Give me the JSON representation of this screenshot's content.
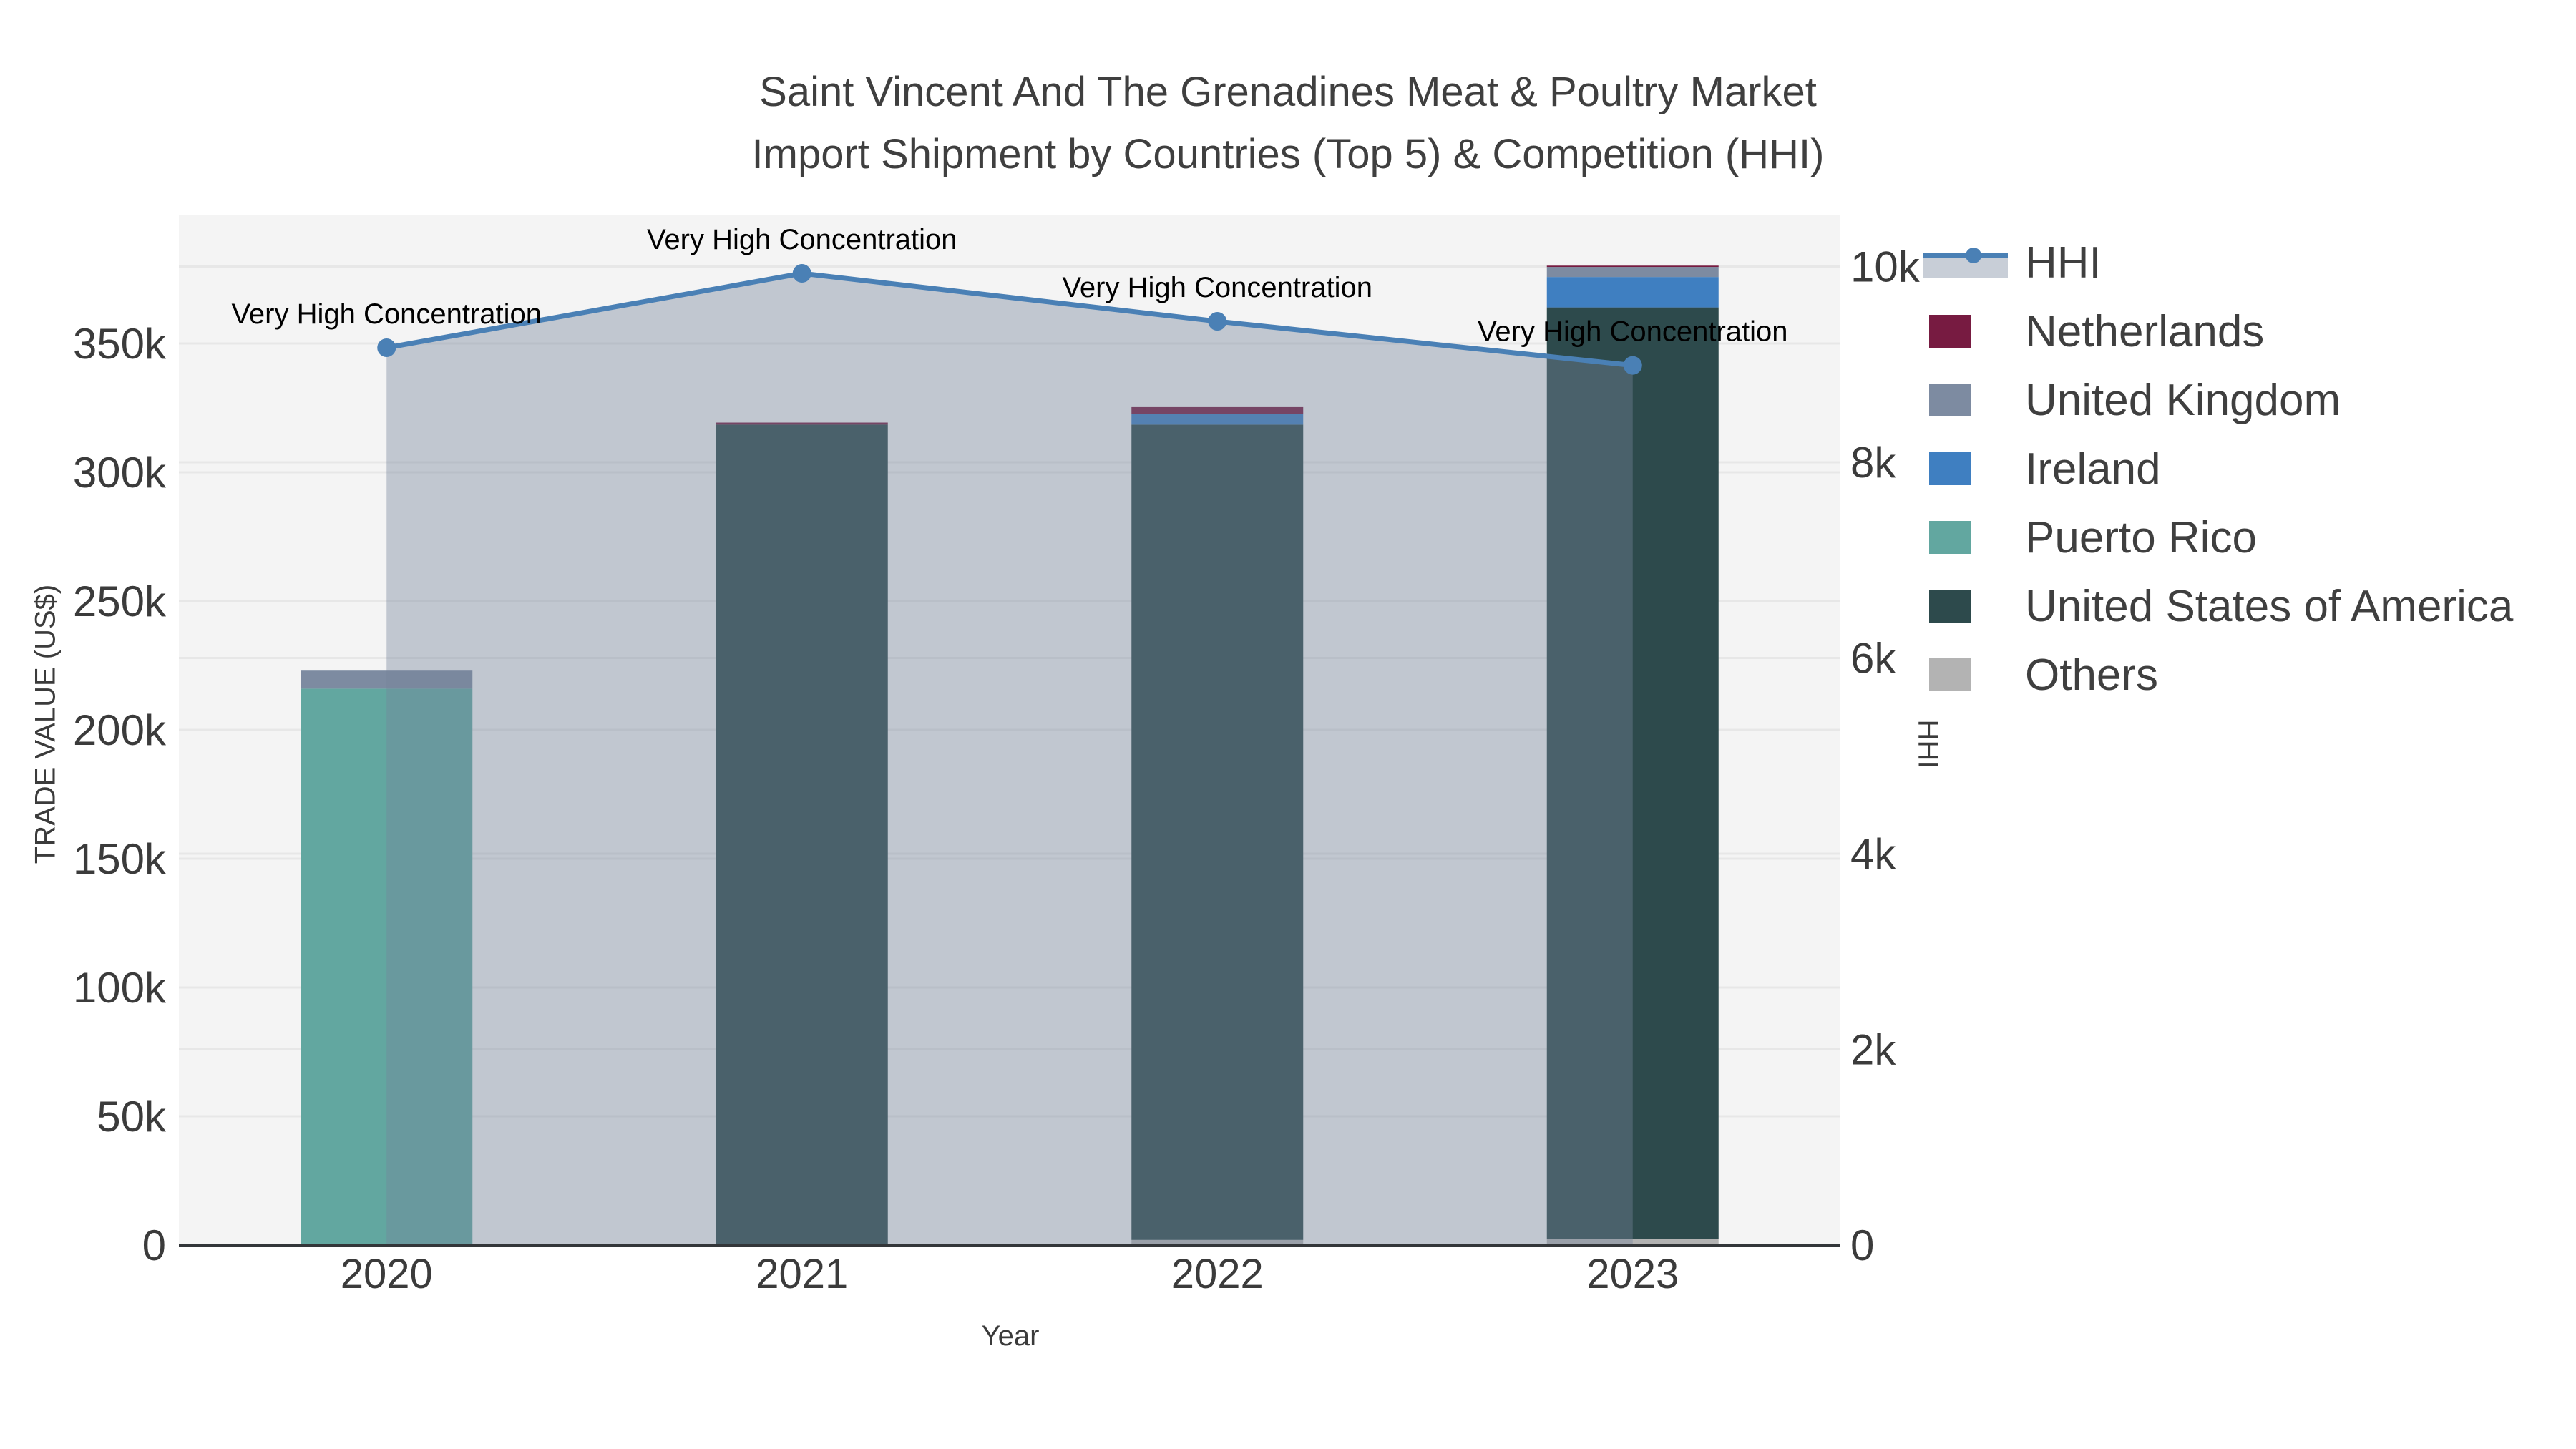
{
  "title": {
    "line1": "Saint Vincent And The Grenadines Meat & Poultry Market",
    "line2": "Import Shipment by Countries (Top 5) & Competition (HHI)"
  },
  "axes": {
    "left": {
      "title": "TRADE VALUE (US$)",
      "max": 400000,
      "ticks": [
        {
          "v": 0,
          "label": "0"
        },
        {
          "v": 50000,
          "label": "50k"
        },
        {
          "v": 100000,
          "label": "100k"
        },
        {
          "v": 150000,
          "label": "150k"
        },
        {
          "v": 200000,
          "label": "200k"
        },
        {
          "v": 250000,
          "label": "250k"
        },
        {
          "v": 300000,
          "label": "300k"
        },
        {
          "v": 350000,
          "label": "350k"
        }
      ]
    },
    "right": {
      "title": "HHI",
      "max": 10530,
      "ticks": [
        {
          "v": 0,
          "label": "0"
        },
        {
          "v": 2000,
          "label": "2k"
        },
        {
          "v": 4000,
          "label": "4k"
        },
        {
          "v": 6000,
          "label": "6k"
        },
        {
          "v": 8000,
          "label": "8k"
        },
        {
          "v": 10000,
          "label": "10k"
        }
      ]
    },
    "x": {
      "title": "Year",
      "categories": [
        "2020",
        "2021",
        "2022",
        "2023"
      ]
    }
  },
  "legend": {
    "items": [
      {
        "label": "HHI",
        "kind": "line",
        "color": "#4a80b5",
        "band_color": "#c8ced7"
      },
      {
        "label": "Netherlands",
        "kind": "box",
        "color": "#771b41"
      },
      {
        "label": "United Kingdom",
        "kind": "box",
        "color": "#7d8ba1"
      },
      {
        "label": "Ireland",
        "kind": "box",
        "color": "#3f7fc1"
      },
      {
        "label": "Puerto Rico",
        "kind": "box",
        "color": "#62a7a0"
      },
      {
        "label": "United States of America",
        "kind": "box",
        "color": "#2d4a4c"
      },
      {
        "label": "Others",
        "kind": "box",
        "color": "#b3b3b3"
      }
    ]
  },
  "chart_data": {
    "type": "bar",
    "subtype": "stacked-bars-with-line",
    "categories": [
      "2020",
      "2021",
      "2022",
      "2023"
    ],
    "series": [
      {
        "name": "Netherlands",
        "color": "#771b41",
        "values": [
          0,
          800,
          2800,
          500
        ]
      },
      {
        "name": "United Kingdom",
        "color": "#7d8ba1",
        "values": [
          7000,
          0,
          0,
          3900
        ]
      },
      {
        "name": "Ireland",
        "color": "#3f7fc1",
        "values": [
          0,
          0,
          4000,
          11800
        ]
      },
      {
        "name": "Puerto Rico",
        "color": "#62a7a0",
        "values": [
          216000,
          0,
          0,
          0
        ]
      },
      {
        "name": "United States of America",
        "color": "#2d4a4c",
        "values": [
          0,
          318500,
          316500,
          361500
        ]
      },
      {
        "name": "Others",
        "color": "#b3b3b3",
        "values": [
          0,
          0,
          2000,
          2500
        ]
      }
    ],
    "stack_note": "stacked bottom-to-top in reverse series order: Others, United States of America, Puerto Rico, Ireland, United Kingdom, Netherlands",
    "line_series": {
      "name": "HHI",
      "axis": "right",
      "color": "#4a80b5",
      "band_fill": "rgba(118,132,154,0.40)",
      "values": [
        9170,
        9930,
        9440,
        8990
      ]
    },
    "annotations": [
      {
        "x": "2020",
        "text": "Very High Concentration"
      },
      {
        "x": "2021",
        "text": "Very High Concentration"
      },
      {
        "x": "2022",
        "text": "Very High Concentration"
      },
      {
        "x": "2023",
        "text": "Very High Concentration"
      }
    ],
    "title": "Saint Vincent And The Grenadines Meat & Poultry Market Import Shipment by Countries (Top 5) & Competition (HHI)",
    "xlabel": "Year",
    "ylabel": "TRADE VALUE (US$)",
    "ylabel_right": "HHI",
    "ylim_left": [
      0,
      400000
    ],
    "ylim_right": [
      0,
      10530
    ],
    "grid": true,
    "legend_position": "right"
  },
  "style": {
    "plot_bg": "#f4f4f4",
    "grid_color": "rgba(0,0,0,0.05)",
    "axis_line_color": "#333639",
    "text_color": "#3b3b3b"
  }
}
